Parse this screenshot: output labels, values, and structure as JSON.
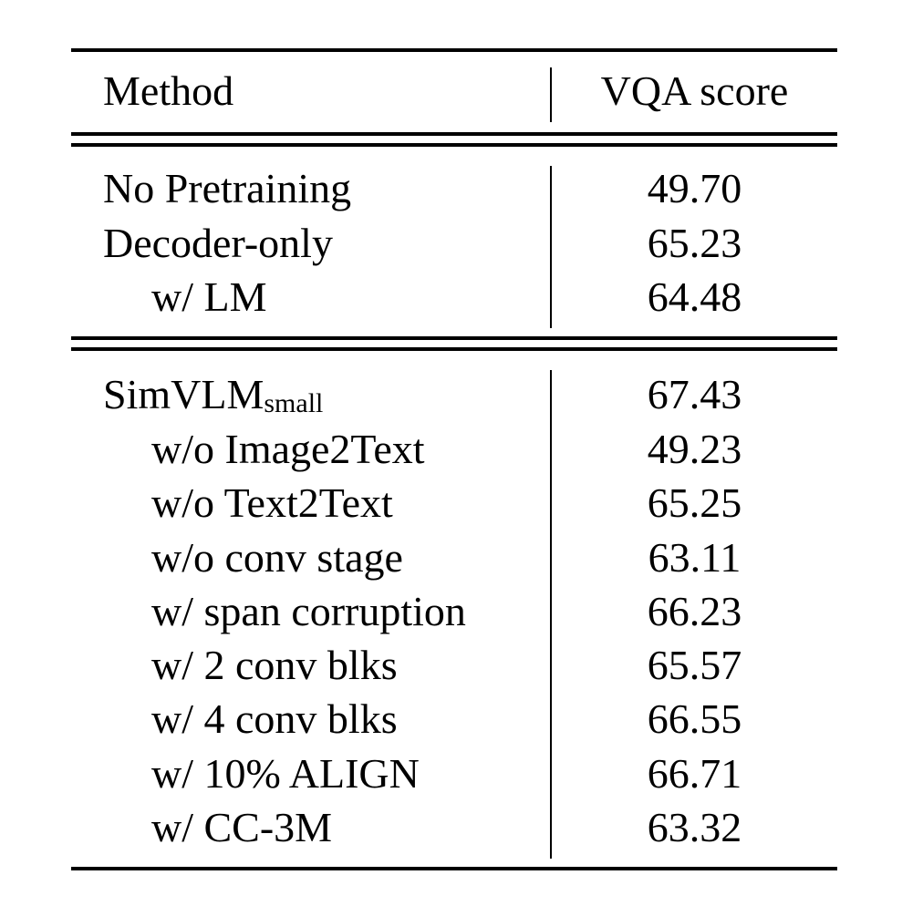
{
  "table": {
    "headers": {
      "method": "Method",
      "score": "VQA score"
    },
    "groups": [
      {
        "rows": [
          {
            "method": "No Pretraining",
            "score": "49.70",
            "indent": false
          },
          {
            "method": "Decoder-only",
            "score": "65.23",
            "indent": false
          },
          {
            "method": "w/ LM",
            "score": "64.48",
            "indent": true
          }
        ]
      },
      {
        "rows": [
          {
            "method": "SimVLM",
            "method_sub": "small",
            "score": "67.43",
            "indent": false
          },
          {
            "method": "w/o Image2Text",
            "score": "49.23",
            "indent": true
          },
          {
            "method": "w/o Text2Text",
            "score": "65.25",
            "indent": true
          },
          {
            "method": "w/o conv stage",
            "score": "63.11",
            "indent": true
          },
          {
            "method": "w/ span corruption",
            "score": "66.23",
            "indent": true
          },
          {
            "method": "w/ 2 conv blks",
            "score": "65.57",
            "indent": true
          },
          {
            "method": "w/ 4 conv blks",
            "score": "66.55",
            "indent": true
          },
          {
            "method": "w/ 10% ALIGN",
            "score": "66.71",
            "indent": true
          },
          {
            "method": "w/ CC-3M",
            "score": "63.32",
            "indent": true
          }
        ]
      }
    ]
  }
}
